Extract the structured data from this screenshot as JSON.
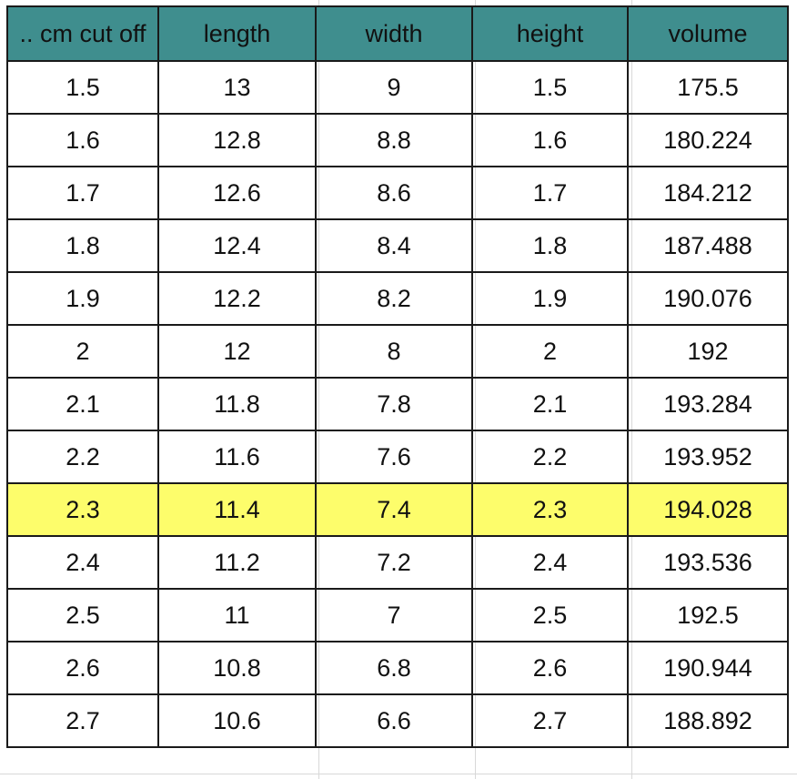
{
  "colors": {
    "header_bg": "#3f8e8e",
    "highlight_bg": "#fdfd6b",
    "border": "#1a1a1a"
  },
  "table": {
    "headers": [
      ".. cm cut off",
      "length",
      "width",
      "height",
      "volume"
    ],
    "highlighted_row_index": 8,
    "rows": [
      [
        "1.5",
        "13",
        "9",
        "1.5",
        "175.5"
      ],
      [
        "1.6",
        "12.8",
        "8.8",
        "1.6",
        "180.224"
      ],
      [
        "1.7",
        "12.6",
        "8.6",
        "1.7",
        "184.212"
      ],
      [
        "1.8",
        "12.4",
        "8.4",
        "1.8",
        "187.488"
      ],
      [
        "1.9",
        "12.2",
        "8.2",
        "1.9",
        "190.076"
      ],
      [
        "2",
        "12",
        "8",
        "2",
        "192"
      ],
      [
        "2.1",
        "11.8",
        "7.8",
        "2.1",
        "193.284"
      ],
      [
        "2.2",
        "11.6",
        "7.6",
        "2.2",
        "193.952"
      ],
      [
        "2.3",
        "11.4",
        "7.4",
        "2.3",
        "194.028"
      ],
      [
        "2.4",
        "11.2",
        "7.2",
        "2.4",
        "193.536"
      ],
      [
        "2.5",
        "11",
        "7",
        "2.5",
        "192.5"
      ],
      [
        "2.6",
        "10.8",
        "6.8",
        "2.6",
        "190.944"
      ],
      [
        "2.7",
        "10.6",
        "6.6",
        "2.7",
        "188.892"
      ]
    ]
  }
}
